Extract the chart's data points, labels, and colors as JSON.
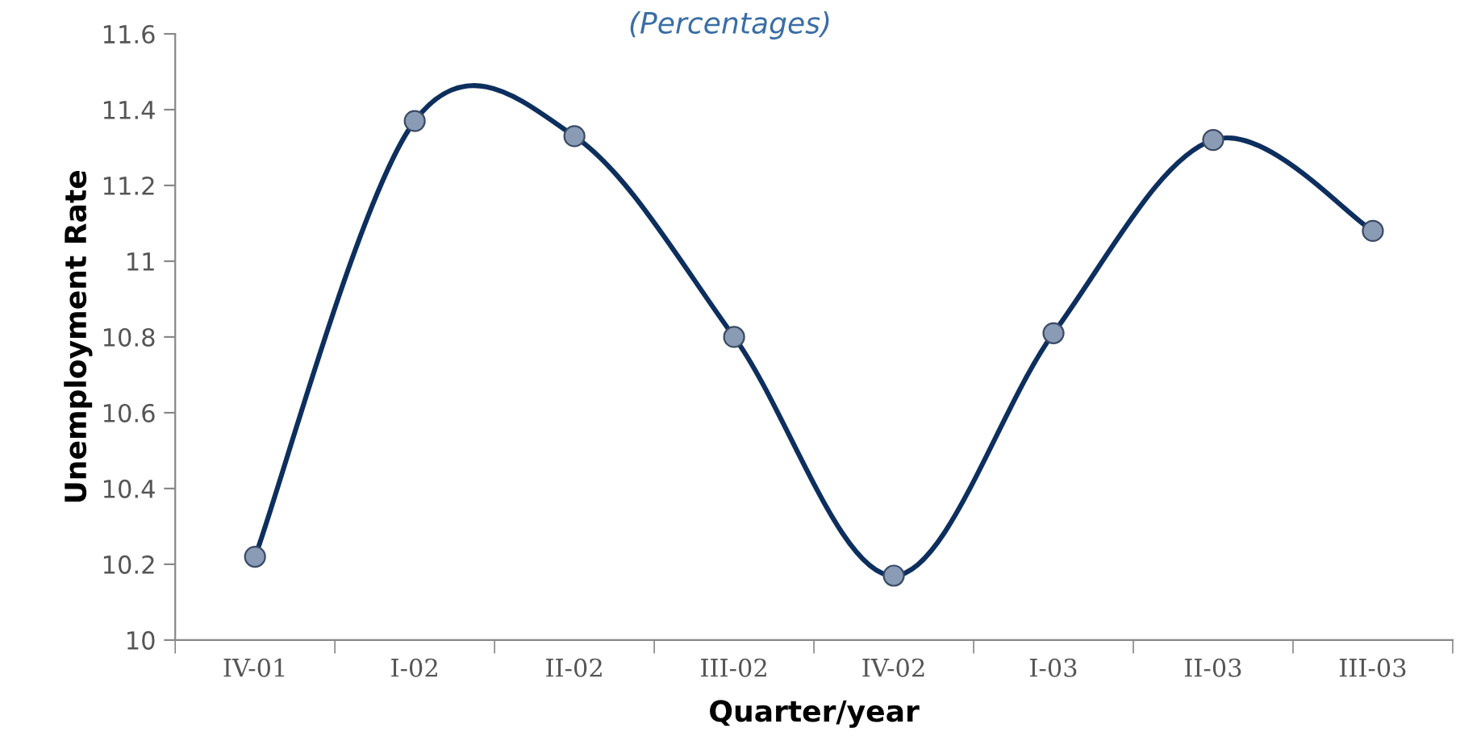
{
  "chart_data": {
    "type": "line",
    "subtitle": "(Percentages)",
    "xlabel": "Quarter/year",
    "ylabel": "Unemployment Rate",
    "categories": [
      "IV-01",
      "I-02",
      "II-02",
      "III-02",
      "IV-02",
      "I-03",
      "II-03",
      "III-03"
    ],
    "series": [
      {
        "color": "#0d2f5e",
        "values": [
          10.22,
          11.37,
          11.33,
          10.8,
          10.17,
          10.81,
          11.32,
          11.08
        ]
      }
    ],
    "ylim": [
      10,
      11.6
    ],
    "yticks": [
      10,
      10.2,
      10.4,
      10.6,
      10.8,
      11,
      11.2,
      11.4,
      11.6
    ],
    "grid": false,
    "marker": "circle",
    "line_style": "solid"
  }
}
